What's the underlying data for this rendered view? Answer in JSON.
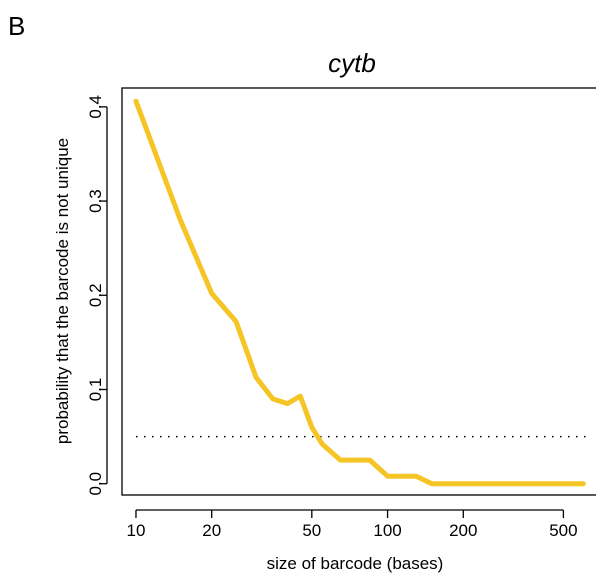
{
  "panel_label": "B",
  "chart_data": {
    "type": "line",
    "title": "cytb",
    "xlabel": "size of barcode (bases)",
    "ylabel": "probability that the barcode is not unique",
    "x_scale": "log",
    "xlim": [
      8.8,
      680
    ],
    "ylim": [
      -0.012,
      0.42
    ],
    "xticks": [
      10,
      20,
      50,
      100,
      200,
      500
    ],
    "xtick_labels": [
      "10",
      "20",
      "50",
      "100",
      "200",
      "500"
    ],
    "yticks": [
      0.0,
      0.1,
      0.2,
      0.3,
      0.4
    ],
    "ytick_labels": [
      "0.0",
      "0.1",
      "0.2",
      "0.3",
      "0.4"
    ],
    "grid": false,
    "legend": "none",
    "series": [
      {
        "color": "#F5C525",
        "x": [
          10,
          15,
          20,
          25,
          30,
          35,
          40,
          45,
          50,
          55,
          65,
          85,
          100,
          130,
          150,
          200,
          300,
          400,
          600
        ],
        "y": [
          0.406,
          0.28,
          0.202,
          0.172,
          0.113,
          0.09,
          0.085,
          0.093,
          0.06,
          0.042,
          0.025,
          0.025,
          0.008,
          0.008,
          0.0,
          0.0,
          0.0,
          0.0,
          0.0
        ]
      }
    ],
    "reference_lines": [
      {
        "orientation": "horizontal",
        "y": 0.05,
        "style": "dotted",
        "color": "#000000"
      }
    ]
  }
}
